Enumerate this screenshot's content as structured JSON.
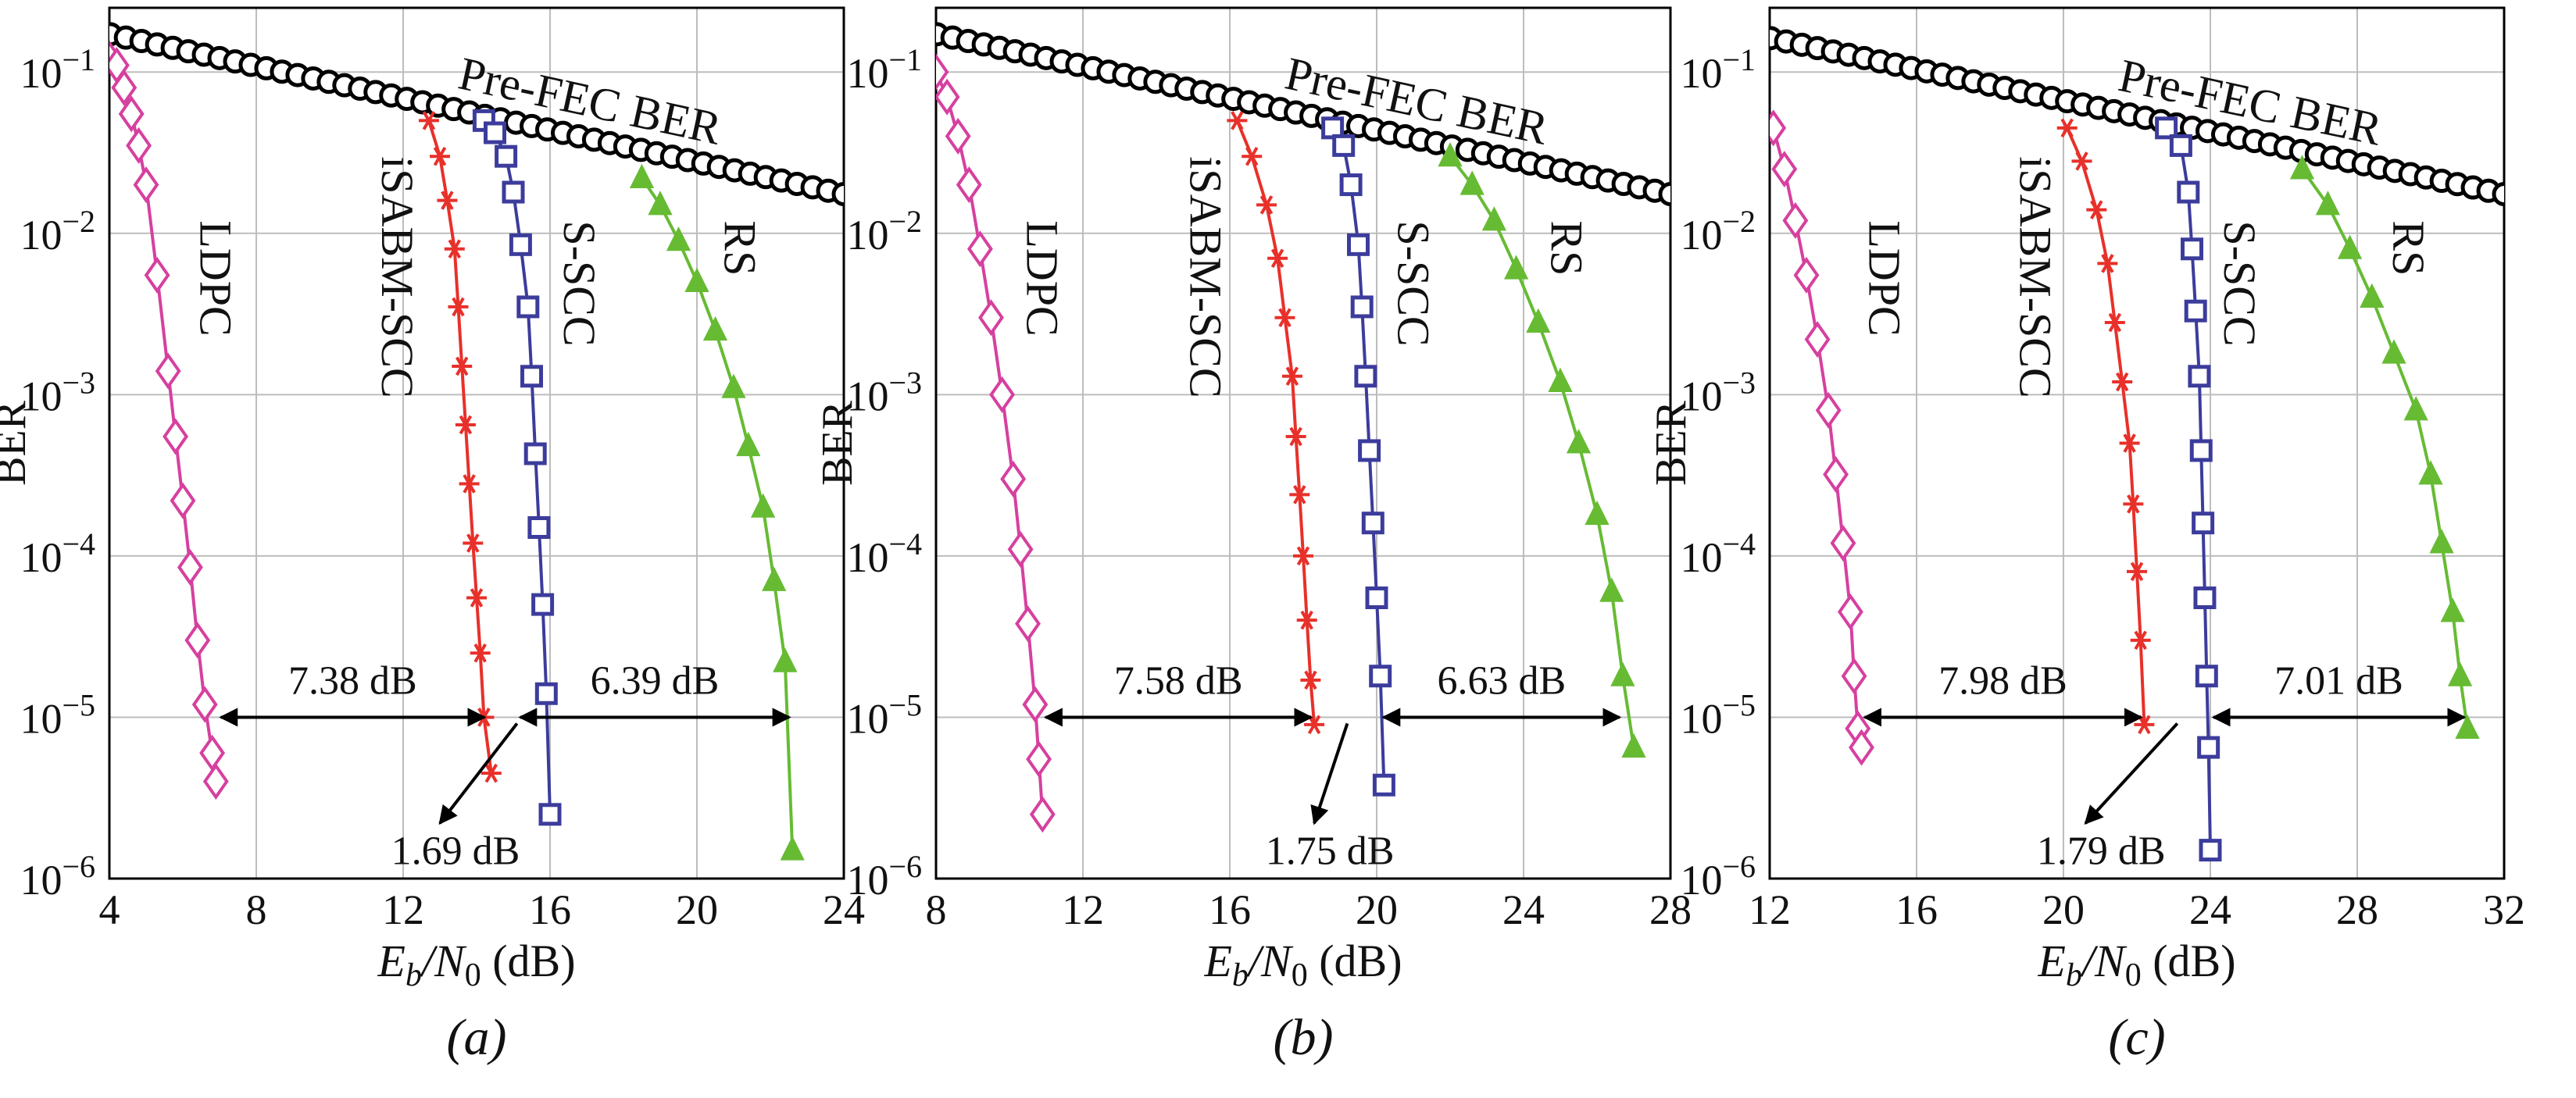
{
  "figure": {
    "ylabel": "BER",
    "xlabel_parts": [
      "E",
      "b",
      "/N",
      "0",
      " (dB)"
    ],
    "y_ticks": [
      {
        "base": "10",
        "exp": "−1",
        "value": 0.1
      },
      {
        "base": "10",
        "exp": "−2",
        "value": 0.01
      },
      {
        "base": "10",
        "exp": "−3",
        "value": 0.001
      },
      {
        "base": "10",
        "exp": "−4",
        "value": 0.0001
      },
      {
        "base": "10",
        "exp": "−5",
        "value": 1e-05
      },
      {
        "base": "10",
        "exp": "−6",
        "value": 1e-06
      }
    ]
  },
  "colors": {
    "prefec": "#000000",
    "ldpc": "#d6409f",
    "isabm": "#e8302a",
    "sscc": "#3c3c9c",
    "rs": "#66bb33",
    "grid": "#bdbdbd"
  },
  "chart_data": [
    {
      "type": "line",
      "caption": "(a)",
      "y_scale": "log",
      "xlim": [
        4,
        24
      ],
      "ylim": [
        1e-06,
        0.25
      ],
      "x_ticks": [
        4,
        8,
        12,
        16,
        20,
        24
      ],
      "labels": {
        "prefec": "Pre-FEC BER",
        "ldpc": "LDPC",
        "isabm": "iSABM-SCC",
        "sscc": "S-SCC",
        "rs": "RS"
      },
      "annotations": {
        "gap_left": "7.38 dB",
        "gap_right": "6.39 dB",
        "gap_small": "1.69 dB"
      },
      "series": [
        {
          "key": "prefec",
          "marker": "circle",
          "x": [
            3.6,
            24
          ],
          "y": [
            0.18,
            0.0175
          ]
        },
        {
          "key": "ldpc",
          "marker": "diamond",
          "x": [
            3.9,
            4.2,
            4.4,
            4.6,
            4.8,
            5.0,
            5.3,
            5.6,
            5.8,
            6.0,
            6.2,
            6.4,
            6.6,
            6.8,
            6.9
          ],
          "y": [
            0.13,
            0.11,
            0.08,
            0.055,
            0.035,
            0.02,
            0.0055,
            0.0014,
            0.00055,
            0.00022,
            8.5e-05,
            3e-05,
            1.2e-05,
            6e-06,
            4e-06
          ]
        },
        {
          "key": "isabm",
          "marker": "star",
          "x": [
            12.7,
            13.0,
            13.2,
            13.4,
            13.5,
            13.6,
            13.7,
            13.8,
            13.9,
            14.0,
            14.1,
            14.2,
            14.4
          ],
          "y": [
            0.05,
            0.03,
            0.016,
            0.008,
            0.0035,
            0.0015,
            0.00065,
            0.00028,
            0.00012,
            5.5e-05,
            2.5e-05,
            1e-05,
            4.5e-06
          ]
        },
        {
          "key": "sscc",
          "marker": "square",
          "x": [
            14.2,
            14.5,
            14.8,
            15.0,
            15.2,
            15.4,
            15.5,
            15.6,
            15.7,
            15.8,
            15.9,
            16.0
          ],
          "y": [
            0.05,
            0.042,
            0.03,
            0.018,
            0.0085,
            0.0035,
            0.0013,
            0.00043,
            0.00015,
            5e-05,
            1.4e-05,
            2.5e-06
          ]
        },
        {
          "key": "rs",
          "marker": "triangle",
          "x": [
            18.5,
            19.0,
            19.5,
            20.0,
            20.5,
            21.0,
            21.4,
            21.8,
            22.1,
            22.4,
            22.6
          ],
          "y": [
            0.022,
            0.015,
            0.009,
            0.005,
            0.0025,
            0.0011,
            0.00048,
            0.0002,
            7e-05,
            2.2e-05,
            1.5e-06
          ]
        }
      ],
      "arrows": {
        "y": 1e-05,
        "x_left": 6.95,
        "x_mid": 14.3,
        "x_mid2": 15.1,
        "x_right": 22.6,
        "diag_from": 15.1,
        "diag_to": 13.0
      }
    },
    {
      "type": "line",
      "caption": "(b)",
      "y_scale": "log",
      "xlim": [
        8,
        28
      ],
      "ylim": [
        1e-06,
        0.25
      ],
      "x_ticks": [
        8,
        12,
        16,
        20,
        24,
        28
      ],
      "labels": {
        "prefec": "Pre-FEC BER",
        "ldpc": "LDPC",
        "isabm": "iSABM-SCC",
        "sscc": "S-SCC",
        "rs": "RS"
      },
      "annotations": {
        "gap_left": "7.58 dB",
        "gap_right": "6.63 dB",
        "gap_small": "1.75 dB"
      },
      "series": [
        {
          "key": "prefec",
          "marker": "circle",
          "x": [
            7.6,
            28
          ],
          "y": [
            0.18,
            0.0175
          ]
        },
        {
          "key": "ldpc",
          "marker": "diamond",
          "x": [
            8.0,
            8.3,
            8.6,
            8.9,
            9.2,
            9.5,
            9.8,
            10.1,
            10.3,
            10.5,
            10.7,
            10.8,
            10.9
          ],
          "y": [
            0.1,
            0.07,
            0.04,
            0.02,
            0.008,
            0.003,
            0.001,
            0.0003,
            0.00011,
            3.8e-05,
            1.2e-05,
            5.5e-06,
            2.5e-06
          ]
        },
        {
          "key": "isabm",
          "marker": "star",
          "x": [
            16.2,
            16.6,
            17.0,
            17.3,
            17.5,
            17.7,
            17.8,
            17.9,
            18.0,
            18.1,
            18.2,
            18.3
          ],
          "y": [
            0.05,
            0.03,
            0.015,
            0.007,
            0.003,
            0.0013,
            0.00055,
            0.00024,
            0.0001,
            4e-05,
            1.7e-05,
            9e-06
          ]
        },
        {
          "key": "sscc",
          "marker": "square",
          "x": [
            18.8,
            19.1,
            19.3,
            19.5,
            19.6,
            19.7,
            19.8,
            19.9,
            20.0,
            20.1,
            20.2
          ],
          "y": [
            0.045,
            0.035,
            0.02,
            0.0085,
            0.0035,
            0.0013,
            0.00045,
            0.00016,
            5.5e-05,
            1.8e-05,
            3.8e-06
          ]
        },
        {
          "key": "rs",
          "marker": "triangle",
          "x": [
            22.0,
            22.6,
            23.2,
            23.8,
            24.4,
            25.0,
            25.5,
            26.0,
            26.4,
            26.7,
            27.0
          ],
          "y": [
            0.03,
            0.02,
            0.012,
            0.006,
            0.0028,
            0.0012,
            0.0005,
            0.00018,
            6e-05,
            1.8e-05,
            6.5e-06
          ]
        }
      ],
      "arrows": {
        "y": 1e-05,
        "x_left": 10.9,
        "x_mid": 18.3,
        "x_mid2": 20.1,
        "x_right": 26.7,
        "diag_from": 19.2,
        "diag_to": 18.3
      }
    },
    {
      "type": "line",
      "caption": "(c)",
      "y_scale": "log",
      "xlim": [
        12,
        32
      ],
      "ylim": [
        1e-06,
        0.25
      ],
      "x_ticks": [
        12,
        16,
        20,
        24,
        28,
        32
      ],
      "labels": {
        "prefec": "Pre-FEC BER",
        "ldpc": "LDPC",
        "isabm": "iSABM-SCC",
        "sscc": "S-SCC",
        "rs": "RS"
      },
      "annotations": {
        "gap_left": "7.98 dB",
        "gap_right": "7.01 dB",
        "gap_small": "1.79 dB"
      },
      "series": [
        {
          "key": "prefec",
          "marker": "circle",
          "x": [
            11.6,
            32
          ],
          "y": [
            0.17,
            0.0175
          ]
        },
        {
          "key": "ldpc",
          "marker": "diamond",
          "x": [
            12.1,
            12.4,
            12.7,
            13.0,
            13.3,
            13.6,
            13.8,
            14.0,
            14.2,
            14.3,
            14.4,
            14.5
          ],
          "y": [
            0.045,
            0.025,
            0.012,
            0.0055,
            0.0022,
            0.0008,
            0.00032,
            0.00012,
            4.5e-05,
            1.8e-05,
            8.5e-06,
            6.5e-06
          ]
        },
        {
          "key": "isabm",
          "marker": "star",
          "x": [
            20.1,
            20.5,
            20.9,
            21.2,
            21.4,
            21.6,
            21.8,
            21.9,
            22.0,
            22.1,
            22.2
          ],
          "y": [
            0.045,
            0.028,
            0.014,
            0.0065,
            0.0028,
            0.0012,
            0.0005,
            0.00021,
            8e-05,
            3e-05,
            9e-06
          ]
        },
        {
          "key": "sscc",
          "marker": "square",
          "x": [
            22.8,
            23.2,
            23.4,
            23.5,
            23.6,
            23.7,
            23.75,
            23.8,
            23.85,
            23.9,
            23.95,
            24.0
          ],
          "y": [
            0.045,
            0.035,
            0.018,
            0.008,
            0.0033,
            0.0013,
            0.00045,
            0.00016,
            5.5e-05,
            1.8e-05,
            6.5e-06,
            1.5e-06
          ]
        },
        {
          "key": "rs",
          "marker": "triangle",
          "x": [
            26.5,
            27.2,
            27.8,
            28.4,
            29.0,
            29.6,
            30.0,
            30.3,
            30.6,
            30.8,
            31.0
          ],
          "y": [
            0.025,
            0.015,
            0.008,
            0.004,
            0.0018,
            0.0008,
            0.00032,
            0.00012,
            4.5e-05,
            1.8e-05,
            8.5e-06
          ]
        }
      ],
      "arrows": {
        "y": 1e-05,
        "x_left": 14.5,
        "x_mid": 22.2,
        "x_mid2": 24.0,
        "x_right": 31.0,
        "diag_from": 23.1,
        "diag_to": 20.6
      }
    }
  ]
}
